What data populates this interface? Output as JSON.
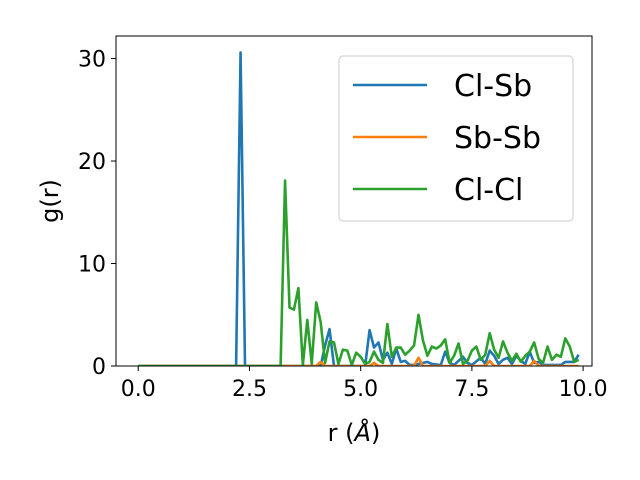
{
  "chart_data": {
    "type": "line",
    "xlabel_text": "r (",
    "xlabel_unit": "Å",
    "xlabel_close": ")",
    "ylabel": "g(r)",
    "xlim": [
      -0.5,
      10.2
    ],
    "ylim": [
      0,
      32.2
    ],
    "xticks": [
      "0.0",
      "2.5",
      "5.0",
      "7.5",
      "10.0"
    ],
    "xtick_values": [
      0,
      2.5,
      5,
      7.5,
      10
    ],
    "yticks": [
      "0",
      "10",
      "20",
      "30"
    ],
    "ytick_values": [
      0,
      10,
      20,
      30
    ],
    "grid": false,
    "legend_position": "top-right",
    "series": [
      {
        "name": "Cl-Sb",
        "color": "#1f77b4",
        "points": [
          [
            0,
            0
          ],
          [
            2.2,
            0
          ],
          [
            2.3,
            30.6
          ],
          [
            2.4,
            0
          ],
          [
            4.1,
            0
          ],
          [
            4.2,
            2.0
          ],
          [
            4.3,
            3.6
          ],
          [
            4.4,
            0
          ],
          [
            5.1,
            0
          ],
          [
            5.2,
            3.5
          ],
          [
            5.3,
            1.8
          ],
          [
            5.4,
            2.3
          ],
          [
            5.5,
            0.6
          ],
          [
            5.6,
            1.3
          ],
          [
            5.7,
            0.2
          ],
          [
            5.8,
            1.7
          ],
          [
            5.9,
            0.4
          ],
          [
            6.0,
            0.5
          ],
          [
            6.1,
            0.1
          ],
          [
            6.2,
            0.1
          ],
          [
            6.5,
            0.4
          ],
          [
            6.6,
            0.2
          ],
          [
            6.8,
            0.1
          ],
          [
            6.9,
            1.4
          ],
          [
            7.0,
            0.3
          ],
          [
            7.1,
            0.1
          ],
          [
            7.3,
            0.9
          ],
          [
            7.4,
            0.3
          ],
          [
            7.5,
            0.1
          ],
          [
            7.7,
            0.8
          ],
          [
            7.8,
            0.2
          ],
          [
            7.9,
            1.5
          ],
          [
            8.0,
            1.0
          ],
          [
            8.1,
            0.2
          ],
          [
            8.2,
            0.6
          ],
          [
            8.3,
            0.8
          ],
          [
            8.4,
            0.2
          ],
          [
            8.5,
            1.0
          ],
          [
            8.6,
            0.5
          ],
          [
            8.7,
            0.2
          ],
          [
            8.8,
            1.4
          ],
          [
            8.9,
            0.3
          ],
          [
            9.0,
            0.4
          ],
          [
            9.1,
            0.1
          ],
          [
            9.2,
            0.1
          ],
          [
            9.5,
            0.1
          ],
          [
            9.6,
            0.4
          ],
          [
            9.7,
            0.4
          ],
          [
            9.8,
            0.4
          ],
          [
            9.9,
            1.1
          ]
        ]
      },
      {
        "name": "Sb-Sb",
        "color": "#ff7f0e",
        "points": [
          [
            0,
            0
          ],
          [
            4.0,
            0
          ],
          [
            4.1,
            0.4
          ],
          [
            4.2,
            0
          ],
          [
            5.2,
            0
          ],
          [
            5.3,
            0.3
          ],
          [
            5.4,
            0
          ],
          [
            6.2,
            0
          ],
          [
            6.3,
            0.8
          ],
          [
            6.4,
            0
          ],
          [
            7.8,
            0
          ],
          [
            7.9,
            0.5
          ],
          [
            8.0,
            0
          ],
          [
            8.8,
            0
          ],
          [
            8.9,
            0.5
          ],
          [
            9.0,
            0
          ],
          [
            9.9,
            0
          ]
        ]
      },
      {
        "name": "Cl-Cl",
        "color": "#2ca02c",
        "points": [
          [
            0,
            0
          ],
          [
            3.2,
            0
          ],
          [
            3.3,
            18.1
          ],
          [
            3.4,
            5.7
          ],
          [
            3.5,
            5.5
          ],
          [
            3.6,
            7.6
          ],
          [
            3.7,
            0.1
          ],
          [
            3.8,
            4.5
          ],
          [
            3.9,
            0.2
          ],
          [
            4.0,
            6.2
          ],
          [
            4.1,
            4.3
          ],
          [
            4.2,
            0.3
          ],
          [
            4.3,
            2.4
          ],
          [
            4.4,
            2.3
          ],
          [
            4.5,
            0.2
          ],
          [
            4.6,
            1.6
          ],
          [
            4.7,
            1.5
          ],
          [
            4.8,
            0.1
          ],
          [
            4.9,
            1.3
          ],
          [
            5.0,
            0.9
          ],
          [
            5.1,
            0.2
          ],
          [
            5.2,
            0.4
          ],
          [
            5.3,
            1.4
          ],
          [
            5.4,
            0.6
          ],
          [
            5.5,
            0.3
          ],
          [
            5.6,
            4.1
          ],
          [
            5.7,
            0.9
          ],
          [
            5.8,
            1.8
          ],
          [
            5.9,
            1.8
          ],
          [
            6.0,
            1.1
          ],
          [
            6.1,
            1.5
          ],
          [
            6.2,
            2.0
          ],
          [
            6.3,
            5.0
          ],
          [
            6.4,
            2.5
          ],
          [
            6.5,
            1.0
          ],
          [
            6.6,
            1.9
          ],
          [
            6.7,
            1.7
          ],
          [
            6.8,
            2.0
          ],
          [
            6.9,
            2.6
          ],
          [
            7.0,
            0.3
          ],
          [
            7.1,
            1.0
          ],
          [
            7.2,
            2.2
          ],
          [
            7.3,
            0.2
          ],
          [
            7.4,
            0.5
          ],
          [
            7.5,
            1.5
          ],
          [
            7.6,
            1.9
          ],
          [
            7.7,
            0.6
          ],
          [
            7.8,
            1.1
          ],
          [
            7.9,
            3.2
          ],
          [
            8.0,
            1.6
          ],
          [
            8.1,
            0.8
          ],
          [
            8.2,
            2.4
          ],
          [
            8.3,
            1.3
          ],
          [
            8.4,
            0.5
          ],
          [
            8.5,
            1.2
          ],
          [
            8.6,
            0.4
          ],
          [
            8.7,
            1.0
          ],
          [
            8.8,
            1.4
          ],
          [
            8.9,
            2.3
          ],
          [
            9.0,
            0.7
          ],
          [
            9.1,
            0.3
          ],
          [
            9.2,
            1.9
          ],
          [
            9.3,
            0.6
          ],
          [
            9.4,
            1.1
          ],
          [
            9.5,
            0.9
          ],
          [
            9.6,
            2.7
          ],
          [
            9.7,
            1.9
          ],
          [
            9.8,
            0.4
          ],
          [
            9.9,
            0.6
          ]
        ]
      }
    ]
  }
}
